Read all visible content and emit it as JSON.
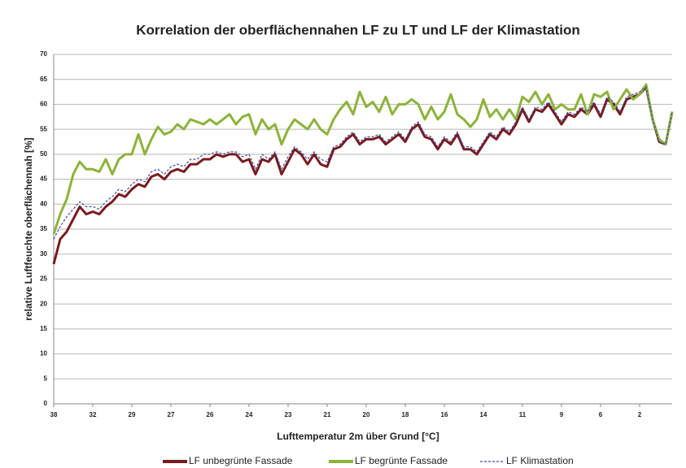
{
  "chart_data": {
    "type": "line",
    "title": "Korrelation der oberflächennahen LF zu LT und LF der Klimastation",
    "x_label": "Lufttemperatur 2m über Grund [°C]",
    "y_label": "relative Luftfeuchte oberflächennah [%]",
    "categories": [
      "38",
      null,
      null,
      null,
      null,
      null,
      "32",
      null,
      null,
      null,
      null,
      null,
      "29",
      null,
      null,
      null,
      null,
      null,
      "27",
      null,
      null,
      null,
      null,
      null,
      "26",
      null,
      null,
      null,
      null,
      null,
      "24",
      null,
      null,
      null,
      null,
      null,
      "23",
      null,
      null,
      null,
      null,
      null,
      "21",
      null,
      null,
      null,
      null,
      null,
      "20",
      null,
      null,
      null,
      null,
      null,
      "18",
      null,
      null,
      null,
      null,
      null,
      "16",
      null,
      null,
      null,
      null,
      null,
      "14",
      null,
      null,
      null,
      null,
      null,
      "11",
      null,
      null,
      null,
      null,
      null,
      "9",
      null,
      null,
      null,
      null,
      null,
      "6",
      null,
      null,
      null,
      null,
      null,
      "2",
      null,
      null,
      null,
      null,
      null
    ],
    "series": [
      {
        "name": "LF unbegrünte Fassade",
        "color": "#7b1a1f",
        "line_style": "solid",
        "values": [
          28,
          33,
          34.5,
          37,
          39.5,
          38,
          38.5,
          38,
          39.5,
          40.5,
          42,
          41.5,
          43,
          44,
          43.5,
          45.5,
          46,
          45,
          46.5,
          47,
          46.5,
          48,
          48,
          49,
          49,
          50,
          49.5,
          50,
          50,
          48.5,
          49,
          46,
          49,
          48.5,
          50,
          46,
          48.5,
          51,
          50,
          48,
          50,
          48,
          47.5,
          51,
          51.5,
          53,
          54,
          52,
          53,
          53,
          53.5,
          52,
          53,
          54,
          52.5,
          55,
          56,
          53.5,
          53,
          51,
          53,
          52,
          54,
          51,
          51,
          50,
          52,
          54,
          53,
          55,
          54,
          56,
          59,
          56.5,
          59,
          58.5,
          60,
          58,
          56,
          58,
          57.5,
          59,
          58,
          60,
          57.5,
          61,
          60,
          58,
          61,
          61.5,
          62,
          63.5,
          57,
          52.5,
          52,
          58.5
        ]
      },
      {
        "name": "LF begrünte Fassade",
        "color": "#8db33a",
        "line_style": "solid",
        "values": [
          34,
          38,
          41,
          46,
          48.5,
          47,
          47,
          46.5,
          49,
          46,
          49,
          50,
          50,
          54,
          50,
          53,
          55.5,
          54,
          54.5,
          56,
          55,
          57,
          56.5,
          56,
          57,
          56,
          57,
          58,
          56,
          57.5,
          58,
          54,
          57,
          55,
          56,
          52,
          55,
          57,
          56,
          55,
          57,
          55,
          54,
          57,
          59,
          60.5,
          58,
          62.5,
          59.5,
          60.5,
          58.5,
          61.5,
          58,
          60,
          60,
          61,
          60,
          57,
          59.5,
          57,
          58.5,
          62,
          58,
          57,
          55.5,
          57,
          61,
          57.5,
          59,
          57,
          59,
          57,
          61.5,
          60.5,
          62.5,
          60,
          62,
          59,
          60,
          59,
          59,
          62,
          58,
          62,
          61.5,
          62.5,
          59,
          61,
          63,
          61,
          62,
          64,
          57,
          53,
          52,
          58.5
        ]
      },
      {
        "name": "LF Klimastation",
        "color": "#3a4fa0",
        "line_style": "dashed",
        "values": [
          33,
          35.5,
          37.5,
          39,
          40.5,
          39.5,
          39.5,
          39,
          40.5,
          41.5,
          43,
          42.5,
          44,
          45,
          44.5,
          46.5,
          47,
          46,
          47.5,
          48,
          47.5,
          49,
          49,
          50,
          50,
          50.5,
          50,
          50.5,
          50.5,
          49.5,
          50,
          47,
          50,
          49,
          50.5,
          47,
          49.5,
          51.5,
          50.5,
          49,
          50.5,
          49,
          48.5,
          51.5,
          52,
          53.5,
          54.5,
          52.5,
          53.5,
          53.5,
          54,
          52.5,
          53.5,
          54.5,
          53,
          55.5,
          56.5,
          54,
          53.5,
          51.5,
          53.5,
          52.5,
          54.5,
          51.5,
          51.5,
          50.5,
          52.5,
          54.5,
          53.5,
          55.5,
          54.5,
          56.5,
          59.5,
          57,
          59.5,
          59,
          60.5,
          58.5,
          56.5,
          58.5,
          58,
          59.5,
          58.5,
          60.5,
          58,
          61.5,
          60.5,
          58.5,
          61.5,
          62,
          62.5,
          63.5,
          57,
          52.5,
          52,
          58.5
        ]
      }
    ],
    "ylim": [
      0,
      70
    ],
    "yticks": [
      0,
      5,
      10,
      15,
      20,
      25,
      30,
      35,
      40,
      45,
      50,
      55,
      60,
      65,
      70
    ],
    "grid": true,
    "legend": "bottom"
  }
}
